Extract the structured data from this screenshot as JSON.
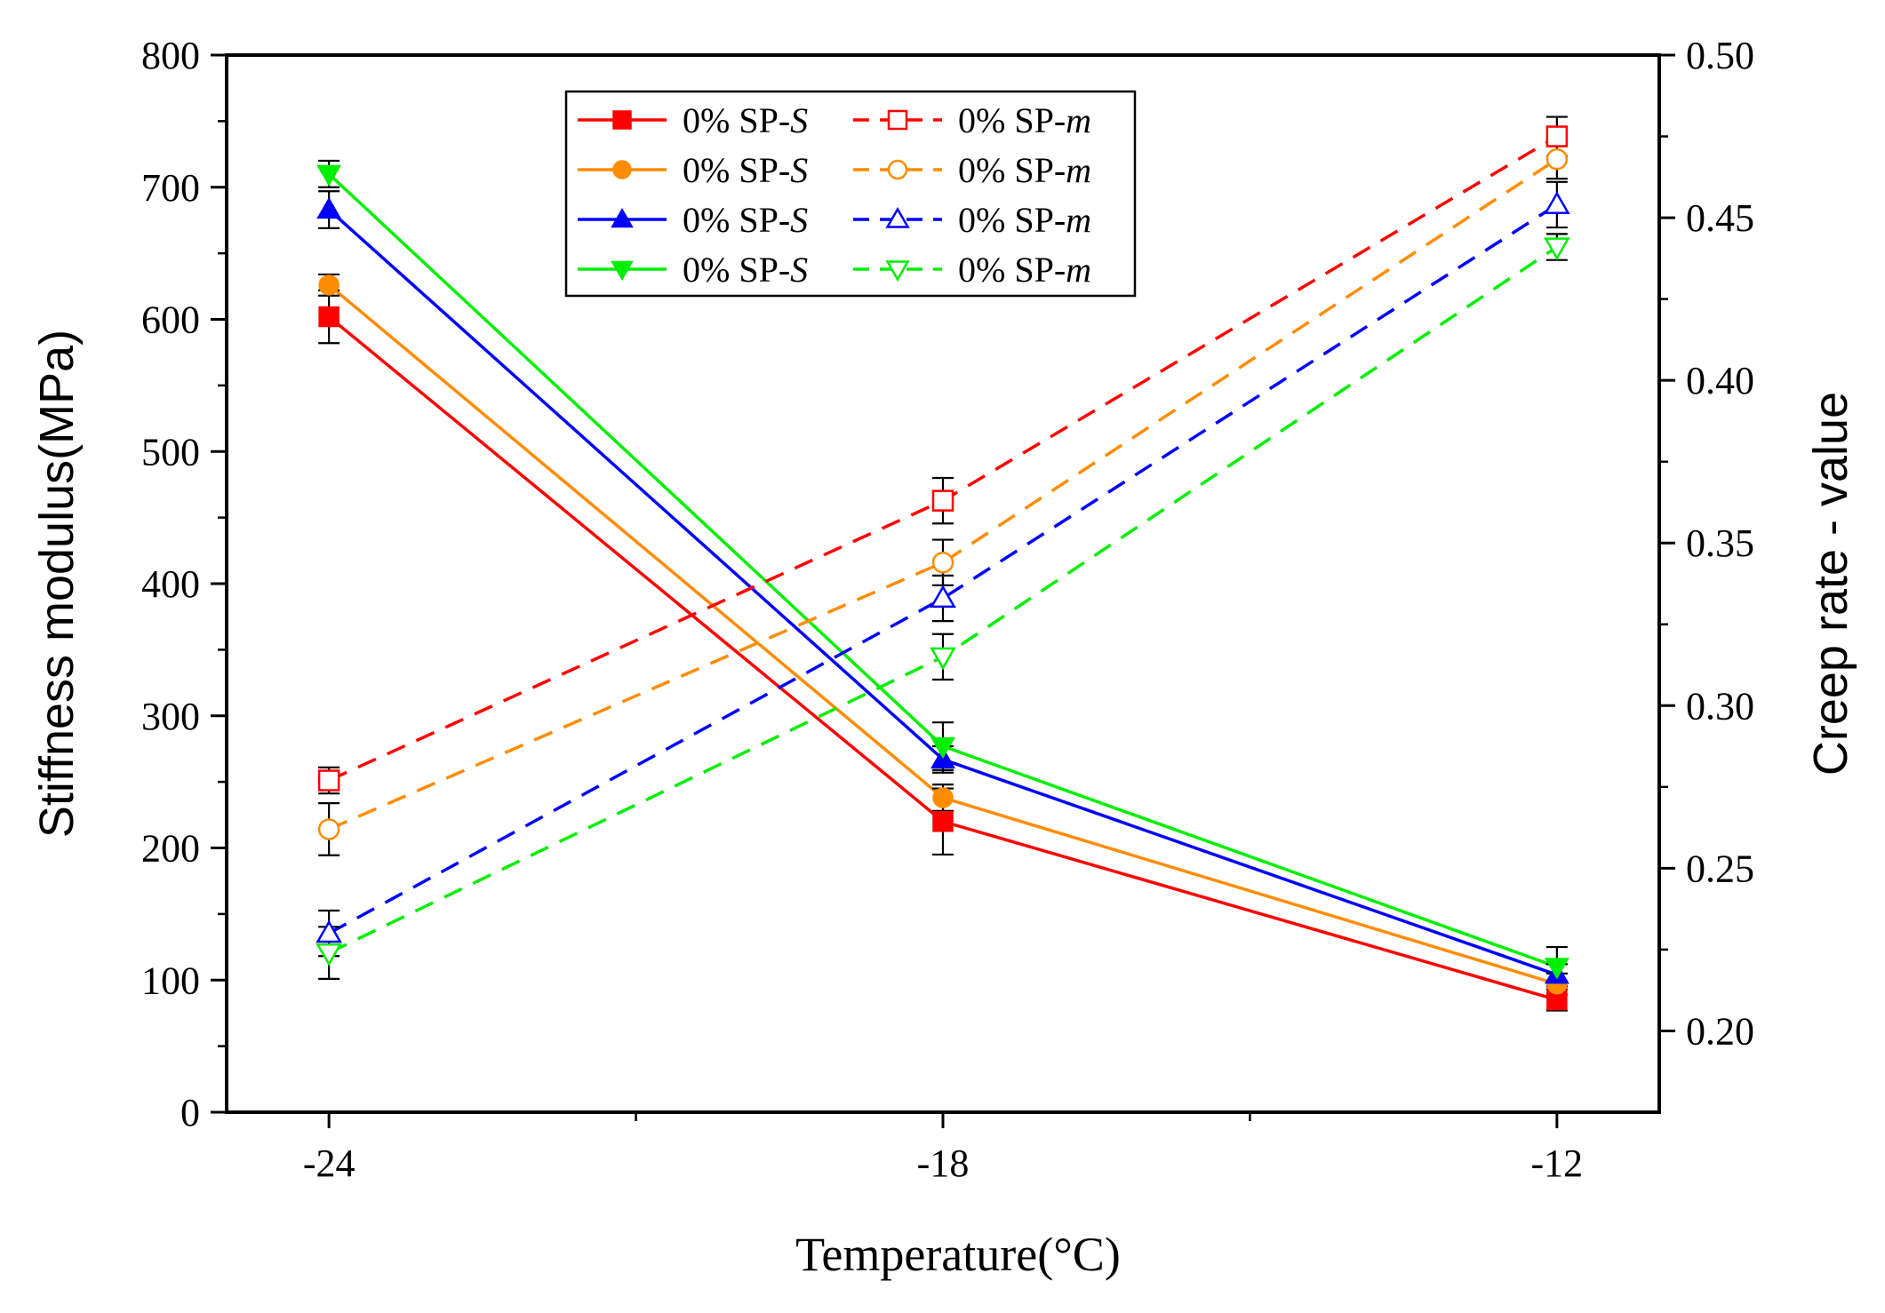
{
  "chart_data": {
    "type": "line",
    "x": [
      -24,
      -18,
      -12
    ],
    "x_tick_labels": [
      "-24",
      "-18",
      "-12"
    ],
    "xlabel": "Temperature(°C)",
    "xlim": [
      -25,
      -11
    ],
    "ylabel_left": "Stiffness modulus(MPa)",
    "ylim_left": [
      0,
      800
    ],
    "yticks_left": [
      "0",
      "100",
      "200",
      "300",
      "400",
      "500",
      "600",
      "700",
      "800"
    ],
    "ylabel_right": "Creep rate - value",
    "ylim_right": [
      0.175,
      0.5
    ],
    "yticks_right": [
      "0.20",
      "0.25",
      "0.30",
      "0.35",
      "0.40",
      "0.45",
      "0.50"
    ],
    "grid": false,
    "legend_position": "top-center",
    "series": [
      {
        "name": "0% SP-",
        "name_suffix": "S",
        "axis": "left",
        "style": "solid",
        "marker": "square-filled",
        "color": "#ff0000",
        "values": [
          602,
          220,
          85
        ],
        "errors": [
          20,
          25,
          8
        ]
      },
      {
        "name": "0% SP-",
        "name_suffix": "S",
        "axis": "left",
        "style": "solid",
        "marker": "circle-filled",
        "color": "#ff8c00",
        "values": [
          626,
          238,
          97
        ],
        "errors": [
          8,
          10,
          8
        ]
      },
      {
        "name": "0% SP-",
        "name_suffix": "S",
        "axis": "left",
        "style": "solid",
        "marker": "triangle-up-filled",
        "color": "#0000ff",
        "values": [
          683,
          267,
          104
        ],
        "errors": [
          14,
          10,
          8
        ]
      },
      {
        "name": "0% SP-",
        "name_suffix": "S",
        "axis": "left",
        "style": "solid",
        "marker": "triangle-down-filled",
        "color": "#00ee00",
        "values": [
          710,
          277,
          110
        ],
        "errors": [
          10,
          18,
          15
        ]
      },
      {
        "name": "0% SP-",
        "name_suffix": "m",
        "axis": "right",
        "style": "dashed",
        "marker": "square-open",
        "color": "#ff0000",
        "values": [
          0.277,
          0.363,
          0.475
        ],
        "errors": [
          0.004,
          0.007,
          0.006
        ]
      },
      {
        "name": "0% SP-",
        "name_suffix": "m",
        "axis": "right",
        "style": "dashed",
        "marker": "circle-open",
        "color": "#ff8c00",
        "values": [
          0.262,
          0.344,
          0.468
        ],
        "errors": [
          0.008,
          0.007,
          0.006
        ]
      },
      {
        "name": "0% SP-",
        "name_suffix": "m",
        "axis": "right",
        "style": "dashed",
        "marker": "triangle-up-open",
        "color": "#0000ff",
        "values": [
          0.23,
          0.333,
          0.454
        ],
        "errors": [
          0.007,
          0.007,
          0.007
        ]
      },
      {
        "name": "0% SP-",
        "name_suffix": "m",
        "axis": "right",
        "style": "dashed",
        "marker": "triangle-down-open",
        "color": "#00ee00",
        "values": [
          0.224,
          0.315,
          0.441
        ],
        "errors": [
          0.008,
          0.007,
          0.004
        ]
      }
    ]
  }
}
